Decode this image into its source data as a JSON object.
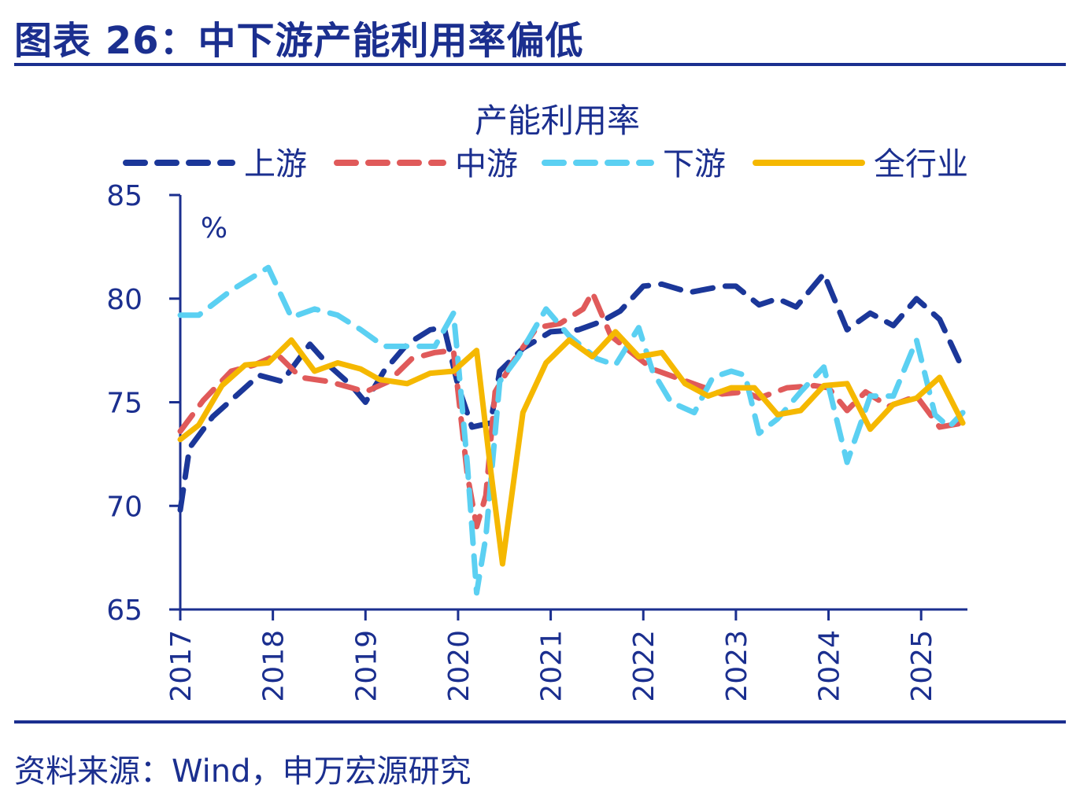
{
  "figure_title": "图表 26：中下游产能利用率偏低",
  "source_note": "资料来源：Wind，申万宏源研究",
  "colors": {
    "upstream": "#1b3799",
    "midstream": "#e05a5a",
    "downstream": "#5bd0f2",
    "all": "#f5b800",
    "text": "#1b2f8f"
  },
  "chart_data": {
    "type": "line",
    "title": "产能利用率",
    "unit_label": "%",
    "ylim": [
      65,
      85
    ],
    "yticks": [
      65,
      70,
      75,
      80,
      85
    ],
    "xlim": [
      2017.0,
      2025.5
    ],
    "xticks": [
      "2017",
      "2018",
      "2019",
      "2020",
      "2021",
      "2022",
      "2023",
      "2024",
      "2025"
    ],
    "legend_position": "top",
    "grid": false,
    "series": [
      {
        "name": "上游",
        "style": "dashed",
        "color": "#1b3799",
        "points": [
          [
            2017.0,
            69.8
          ],
          [
            2017.1,
            72.8
          ],
          [
            2017.35,
            74.3
          ],
          [
            2017.6,
            75.3
          ],
          [
            2017.85,
            76.3
          ],
          [
            2018.1,
            76.0
          ],
          [
            2018.4,
            77.8
          ],
          [
            2018.6,
            76.8
          ],
          [
            2018.85,
            75.8
          ],
          [
            2019.0,
            75.0
          ],
          [
            2019.2,
            76.5
          ],
          [
            2019.45,
            77.8
          ],
          [
            2019.7,
            78.5
          ],
          [
            2019.85,
            78.6
          ],
          [
            2020.0,
            75.8
          ],
          [
            2020.15,
            73.8
          ],
          [
            2020.35,
            74.0
          ],
          [
            2020.45,
            76.5
          ],
          [
            2020.7,
            77.6
          ],
          [
            2021.0,
            78.4
          ],
          [
            2021.3,
            78.5
          ],
          [
            2021.55,
            78.9
          ],
          [
            2021.75,
            79.4
          ],
          [
            2022.0,
            80.6
          ],
          [
            2022.2,
            80.7
          ],
          [
            2022.5,
            80.3
          ],
          [
            2022.85,
            80.6
          ],
          [
            2023.0,
            80.6
          ],
          [
            2023.25,
            79.7
          ],
          [
            2023.45,
            80.0
          ],
          [
            2023.65,
            79.6
          ],
          [
            2023.95,
            81.2
          ],
          [
            2024.2,
            78.5
          ],
          [
            2024.45,
            79.3
          ],
          [
            2024.7,
            78.7
          ],
          [
            2024.95,
            80.0
          ],
          [
            2025.2,
            79.0
          ],
          [
            2025.45,
            76.6
          ]
        ]
      },
      {
        "name": "中游",
        "style": "dashed",
        "color": "#e05a5a",
        "points": [
          [
            2017.0,
            73.6
          ],
          [
            2017.25,
            75.1
          ],
          [
            2017.55,
            76.5
          ],
          [
            2017.8,
            76.8
          ],
          [
            2018.05,
            77.3
          ],
          [
            2018.3,
            76.2
          ],
          [
            2018.6,
            76.0
          ],
          [
            2018.85,
            75.7
          ],
          [
            2019.0,
            75.5
          ],
          [
            2019.25,
            76.0
          ],
          [
            2019.5,
            77.1
          ],
          [
            2019.75,
            77.4
          ],
          [
            2019.95,
            77.5
          ],
          [
            2020.0,
            75.5
          ],
          [
            2020.1,
            71.5
          ],
          [
            2020.2,
            69.0
          ],
          [
            2020.3,
            70.5
          ],
          [
            2020.4,
            75.5
          ],
          [
            2020.6,
            77.0
          ],
          [
            2020.85,
            78.6
          ],
          [
            2021.1,
            78.8
          ],
          [
            2021.35,
            79.5
          ],
          [
            2021.45,
            80.3
          ],
          [
            2021.65,
            78.2
          ],
          [
            2021.9,
            77.3
          ],
          [
            2022.1,
            76.6
          ],
          [
            2022.35,
            76.2
          ],
          [
            2022.6,
            75.8
          ],
          [
            2022.85,
            75.4
          ],
          [
            2023.1,
            75.5
          ],
          [
            2023.25,
            75.2
          ],
          [
            2023.55,
            75.7
          ],
          [
            2023.85,
            75.8
          ],
          [
            2024.0,
            75.7
          ],
          [
            2024.2,
            74.6
          ],
          [
            2024.4,
            75.5
          ],
          [
            2024.65,
            74.8
          ],
          [
            2024.95,
            75.3
          ],
          [
            2025.2,
            73.8
          ],
          [
            2025.45,
            74.0
          ]
        ]
      },
      {
        "name": "下游",
        "style": "dashed",
        "color": "#5bd0f2",
        "points": [
          [
            2017.0,
            79.2
          ],
          [
            2017.2,
            79.2
          ],
          [
            2017.55,
            80.4
          ],
          [
            2017.95,
            81.5
          ],
          [
            2018.2,
            79.1
          ],
          [
            2018.45,
            79.5
          ],
          [
            2018.7,
            79.2
          ],
          [
            2018.95,
            78.5
          ],
          [
            2019.2,
            77.7
          ],
          [
            2019.45,
            77.7
          ],
          [
            2019.75,
            77.7
          ],
          [
            2019.95,
            79.3
          ],
          [
            2020.0,
            77.0
          ],
          [
            2020.1,
            72.0
          ],
          [
            2020.2,
            65.8
          ],
          [
            2020.3,
            68.5
          ],
          [
            2020.45,
            76.0
          ],
          [
            2020.65,
            77.2
          ],
          [
            2020.95,
            79.5
          ],
          [
            2021.2,
            78.2
          ],
          [
            2021.5,
            77.1
          ],
          [
            2021.7,
            76.8
          ],
          [
            2021.95,
            78.6
          ],
          [
            2022.1,
            76.5
          ],
          [
            2022.3,
            75.0
          ],
          [
            2022.55,
            74.5
          ],
          [
            2022.75,
            76.2
          ],
          [
            2022.95,
            76.5
          ],
          [
            2023.1,
            76.3
          ],
          [
            2023.25,
            73.5
          ],
          [
            2023.45,
            74.2
          ],
          [
            2023.7,
            75.5
          ],
          [
            2023.95,
            76.7
          ],
          [
            2024.2,
            72.1
          ],
          [
            2024.45,
            75.3
          ],
          [
            2024.7,
            75.3
          ],
          [
            2024.95,
            78.0
          ],
          [
            2025.15,
            74.4
          ],
          [
            2025.3,
            73.8
          ],
          [
            2025.45,
            74.5
          ]
        ]
      },
      {
        "name": "全行业",
        "style": "solid",
        "color": "#f5b800",
        "points": [
          [
            2017.0,
            73.2
          ],
          [
            2017.2,
            73.9
          ],
          [
            2017.45,
            75.8
          ],
          [
            2017.7,
            76.8
          ],
          [
            2017.95,
            76.9
          ],
          [
            2018.2,
            78.0
          ],
          [
            2018.45,
            76.5
          ],
          [
            2018.7,
            76.9
          ],
          [
            2018.95,
            76.6
          ],
          [
            2019.15,
            76.1
          ],
          [
            2019.45,
            75.9
          ],
          [
            2019.7,
            76.4
          ],
          [
            2019.95,
            76.5
          ],
          [
            2020.2,
            77.5
          ],
          [
            2020.35,
            71.8
          ],
          [
            2020.48,
            67.2
          ],
          [
            2020.7,
            74.5
          ],
          [
            2020.95,
            76.9
          ],
          [
            2021.2,
            78.0
          ],
          [
            2021.45,
            77.2
          ],
          [
            2021.7,
            78.4
          ],
          [
            2021.95,
            77.2
          ],
          [
            2022.2,
            77.4
          ],
          [
            2022.45,
            75.9
          ],
          [
            2022.7,
            75.3
          ],
          [
            2022.95,
            75.7
          ],
          [
            2023.2,
            75.7
          ],
          [
            2023.45,
            74.4
          ],
          [
            2023.7,
            74.6
          ],
          [
            2023.95,
            75.8
          ],
          [
            2024.2,
            75.9
          ],
          [
            2024.45,
            73.7
          ],
          [
            2024.7,
            74.9
          ],
          [
            2024.95,
            75.2
          ],
          [
            2025.2,
            76.2
          ],
          [
            2025.45,
            74.0
          ]
        ]
      }
    ]
  }
}
